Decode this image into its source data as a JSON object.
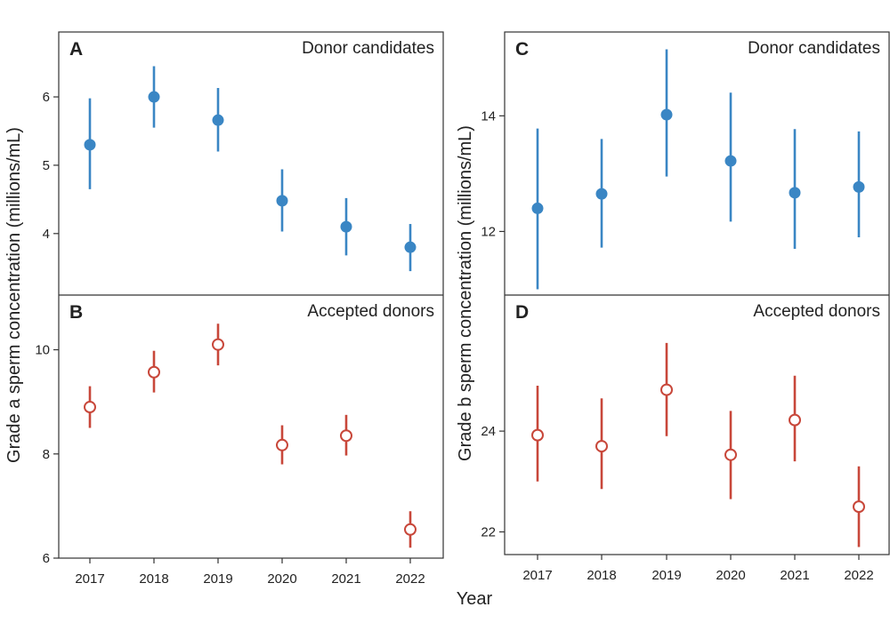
{
  "figure": {
    "shared_xlabel": "Year",
    "left_ylabel": "Grade a sperm concentration (millions/mL)",
    "right_ylabel": "Grade b sperm concentration (millions/mL)"
  },
  "colors": {
    "candidates": "#3a86c4",
    "accepted": "#c8473a",
    "axis": "#333333"
  },
  "chart_data": [
    {
      "panel": "A",
      "title": "Donor candidates",
      "type": "scatter",
      "marker": "filled-circle",
      "ylabel": "Grade a sperm concentration (millions/mL)",
      "x": [
        "2017",
        "2018",
        "2019",
        "2020",
        "2021",
        "2022"
      ],
      "values": [
        5.3,
        6.0,
        5.66,
        4.48,
        4.1,
        3.8
      ],
      "lower": [
        4.65,
        5.55,
        5.2,
        4.03,
        3.68,
        3.45
      ],
      "upper": [
        5.98,
        6.45,
        6.13,
        4.94,
        4.52,
        4.14
      ],
      "ylim": [
        3.1,
        6.95
      ],
      "yticks": [
        4,
        5,
        6
      ],
      "grid": false
    },
    {
      "panel": "B",
      "title": "Accepted donors",
      "type": "scatter",
      "marker": "open-circle",
      "ylabel": "Grade a sperm concentration (millions/mL)",
      "xlabel": "Year",
      "x": [
        "2017",
        "2018",
        "2019",
        "2020",
        "2021",
        "2022"
      ],
      "values": [
        8.9,
        9.57,
        10.1,
        8.17,
        8.35,
        6.55
      ],
      "lower": [
        8.5,
        9.18,
        9.7,
        7.8,
        7.97,
        6.2
      ],
      "upper": [
        9.3,
        9.98,
        10.5,
        8.55,
        8.75,
        6.9
      ],
      "ylim": [
        6.0,
        11.05
      ],
      "yticks": [
        6,
        8,
        10
      ],
      "grid": false
    },
    {
      "panel": "C",
      "title": "Donor candidates",
      "type": "scatter",
      "marker": "filled-circle",
      "ylabel": "Grade b sperm concentration (millions/mL)",
      "x": [
        "2017",
        "2018",
        "2019",
        "2020",
        "2021",
        "2022"
      ],
      "values": [
        12.4,
        12.65,
        14.02,
        13.22,
        12.67,
        12.77
      ],
      "lower": [
        11.0,
        11.72,
        12.95,
        12.17,
        11.7,
        11.9
      ],
      "upper": [
        13.78,
        13.6,
        15.15,
        14.4,
        13.77,
        13.73
      ],
      "ylim": [
        10.9,
        15.45
      ],
      "yticks": [
        12,
        14
      ],
      "grid": false
    },
    {
      "panel": "D",
      "title": "Accepted donors",
      "type": "scatter",
      "marker": "open-circle",
      "ylabel": "Grade b sperm concentration (millions/mL)",
      "xlabel": "Year",
      "x": [
        "2017",
        "2018",
        "2019",
        "2020",
        "2021",
        "2022"
      ],
      "values": [
        23.92,
        23.7,
        24.82,
        23.53,
        24.22,
        22.5
      ],
      "lower": [
        23.0,
        22.85,
        23.9,
        22.65,
        23.4,
        21.7
      ],
      "upper": [
        24.9,
        24.65,
        25.75,
        24.4,
        25.1,
        23.3
      ],
      "ylim": [
        21.55,
        26.7
      ],
      "yticks": [
        22,
        24
      ],
      "grid": false
    }
  ]
}
